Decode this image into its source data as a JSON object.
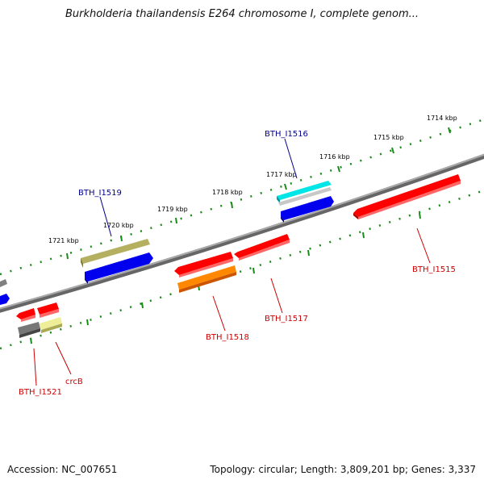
{
  "title": "Burkholderia thailandensis E264 chromosome I, complete genom...",
  "footer": {
    "accession": "Accession: NC_007651",
    "summary": "Topology: circular; Length: 3,809,201 bp; Genes: 3,337"
  },
  "kbp_labels": [
    "1714 kbp",
    "1715 kbp",
    "1716 kbp",
    "1717 kbp",
    "1718 kbp",
    "1719 kbp",
    "1720 kbp",
    "1721 kbp"
  ],
  "genes": [
    {
      "name": "BTH_I1516",
      "color": "#00e5e5",
      "label_color": "#00008b"
    },
    {
      "name": "BTH_I1519",
      "color": "#b5b060",
      "label_color": "#00008b"
    },
    {
      "name": "BTH_I1515",
      "color": "#ff0000",
      "label_color": "#cc0000"
    },
    {
      "name": "BTH_I1517",
      "color": "#ff0000",
      "label_color": "#cc0000"
    },
    {
      "name": "BTH_I1518",
      "color": "#ff8800",
      "label_color": "#cc0000"
    },
    {
      "name": "crcB",
      "color": "#eeee99",
      "label_color": "#cc0000"
    },
    {
      "name": "BTH_I1521",
      "color": "#777777",
      "label_color": "#cc0000"
    }
  ],
  "colors": {
    "backbone": "#808080",
    "ticks": "#1a8a1a",
    "forward_blue": "#0000ee",
    "neighbor_gray": "#808080"
  }
}
